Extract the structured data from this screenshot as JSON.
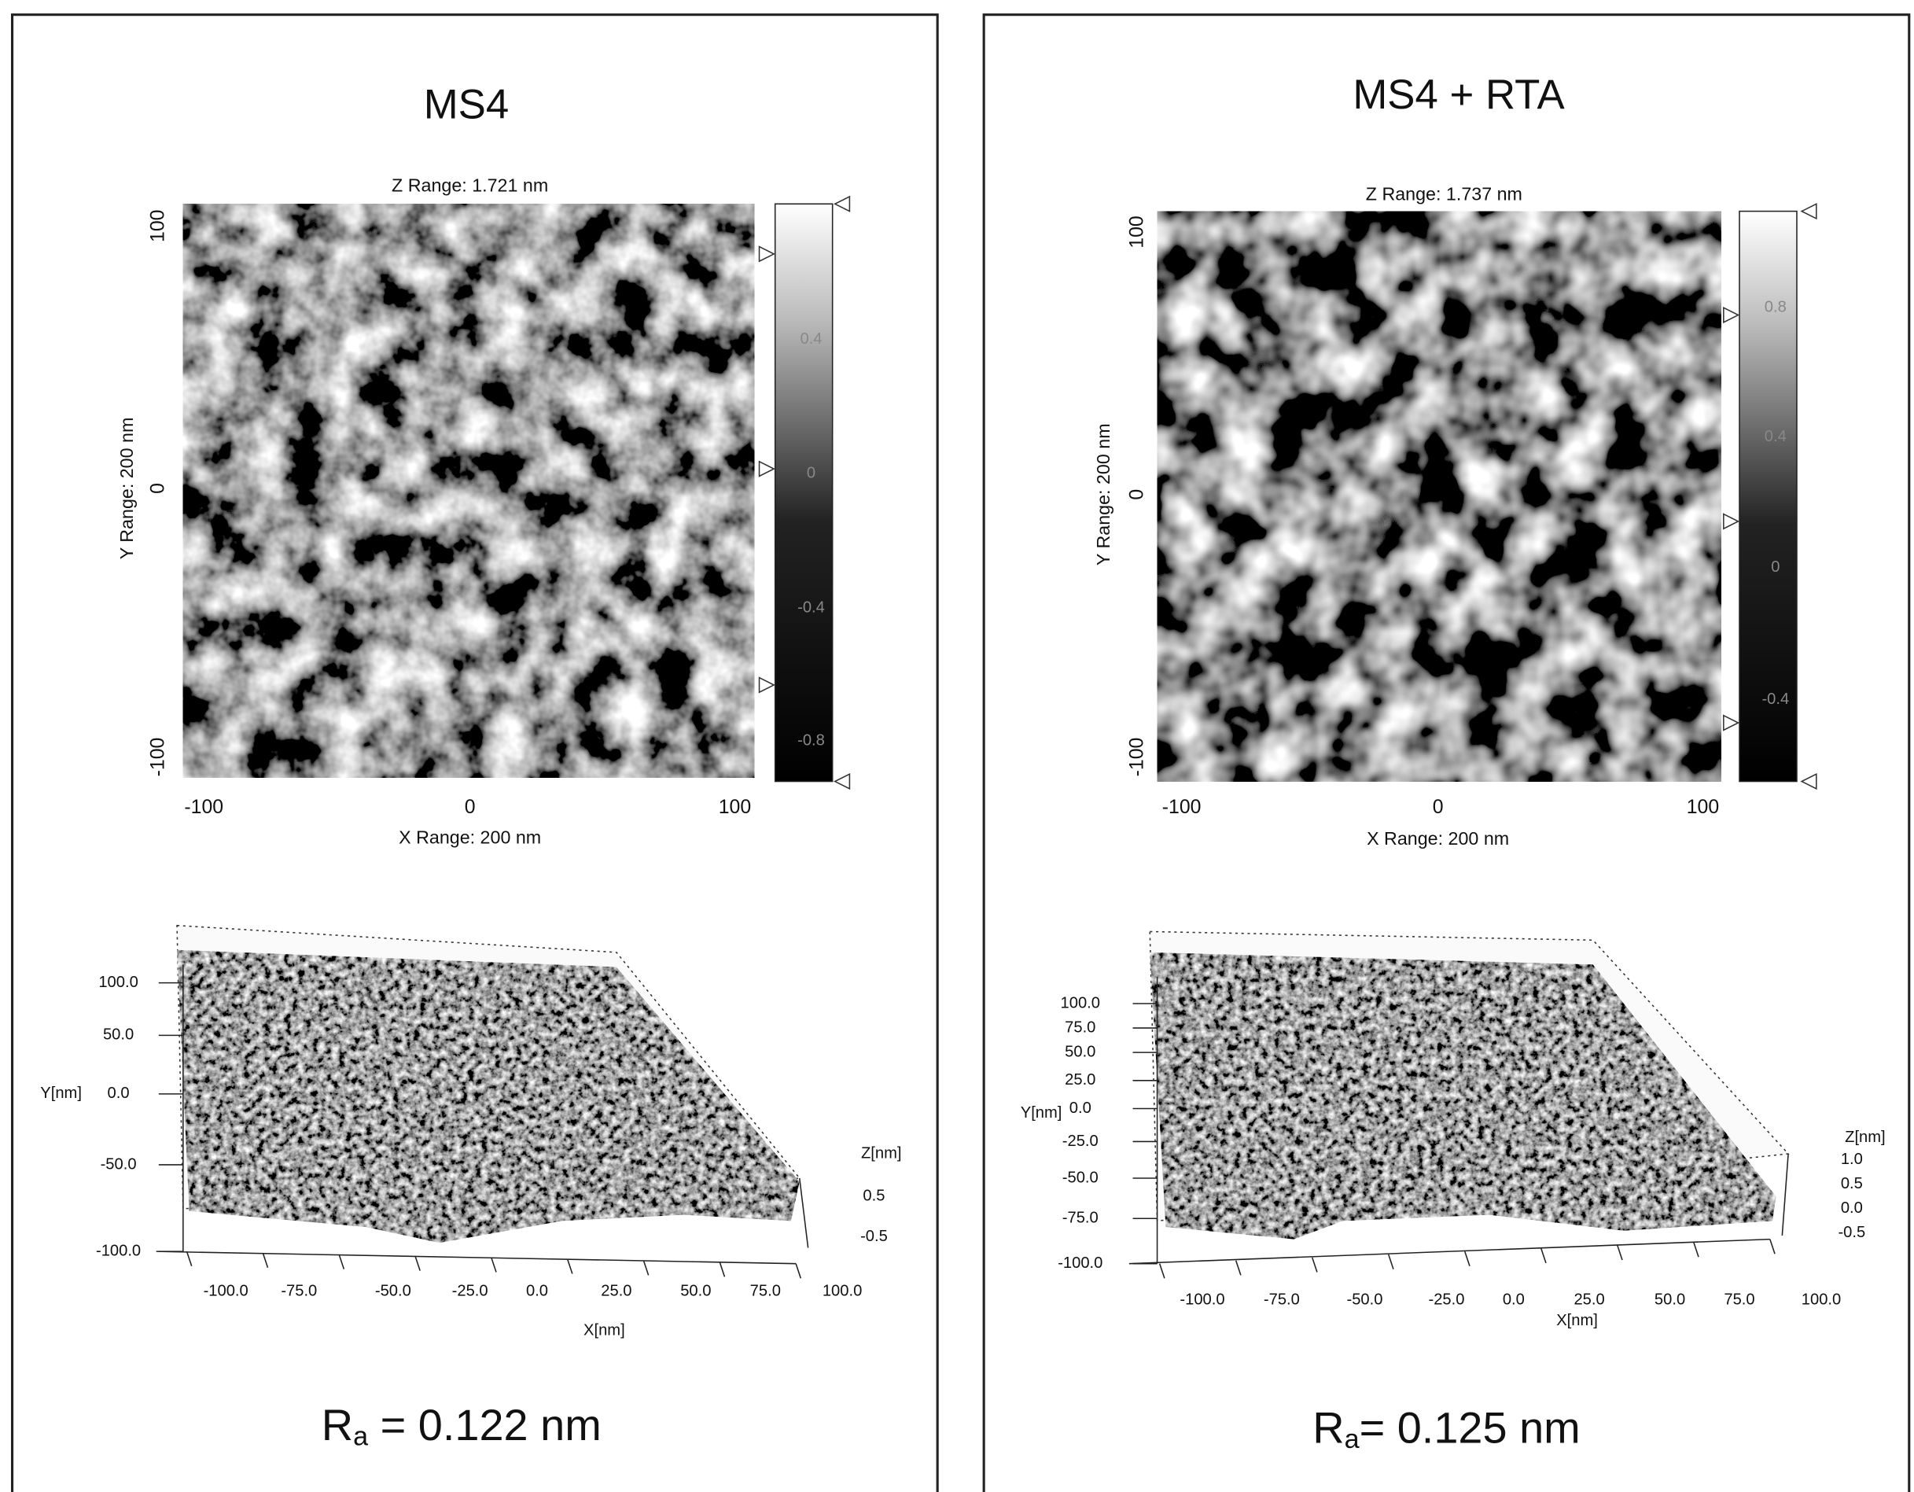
{
  "panels": [
    {
      "title": "MS4",
      "image": {
        "z_range": "Z Range: 1.721 nm",
        "y_label": "Y Range: 200 nm",
        "x_label": "X Range: 200 nm",
        "y_ticks": [
          "100",
          "0",
          "-100"
        ],
        "x_ticks": [
          "-100",
          "0",
          "100"
        ],
        "colorbar_ticks": [
          "0.4",
          "0",
          "-0.4",
          "-0.8"
        ]
      },
      "surface": {
        "y_label": "Y[nm]",
        "x_label": "X[nm]",
        "z_label": "Z[nm]",
        "y_ticks": [
          "100.0",
          "50.0",
          "0.0",
          "-50.0",
          "-100.0"
        ],
        "x_ticks": [
          "-100.0",
          "-75.0",
          "-50.0",
          "-25.0",
          "0.0",
          "25.0",
          "50.0",
          "75.0",
          "100.0"
        ],
        "z_ticks": [
          "0.5",
          "-0.5"
        ]
      },
      "ra": {
        "symbol": "R",
        "subscript": "a",
        "text": " = 0.122 nm"
      }
    },
    {
      "title": "MS4 + RTA",
      "image": {
        "z_range": "Z Range: 1.737 nm",
        "y_label": "Y Range: 200 nm",
        "x_label": "X Range: 200 nm",
        "y_ticks": [
          "100",
          "0",
          "-100"
        ],
        "x_ticks": [
          "-100",
          "0",
          "100"
        ],
        "colorbar_ticks": [
          "0.8",
          "0.4",
          "0",
          "-0.4"
        ]
      },
      "surface": {
        "y_label": "Y[nm]",
        "x_label": "X[nm]",
        "z_label": "Z[nm]",
        "y_ticks": [
          "100.0",
          "75.0",
          "50.0",
          "25.0",
          "0.0",
          "-25.0",
          "-50.0",
          "-75.0",
          "-100.0"
        ],
        "x_ticks": [
          "-100.0",
          "-75.0",
          "-50.0",
          "-25.0",
          "0.0",
          "25.0",
          "50.0",
          "75.0",
          "100.0"
        ],
        "z_ticks": [
          "1.0",
          "0.5",
          "0.0",
          "-0.5"
        ]
      },
      "ra": {
        "symbol": "R",
        "subscript": "a",
        "text": "= 0.125 nm"
      }
    }
  ]
}
